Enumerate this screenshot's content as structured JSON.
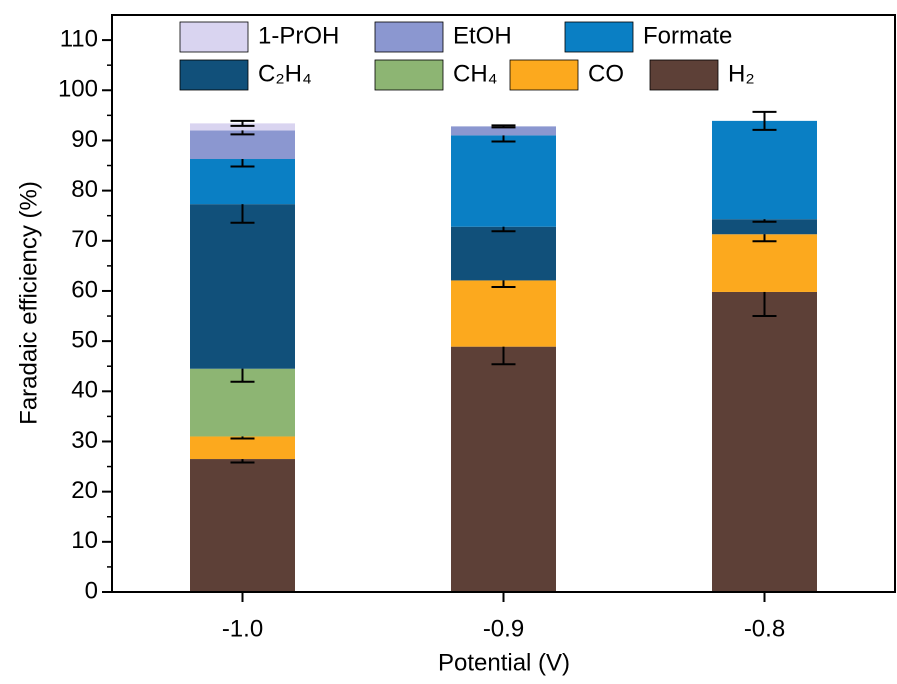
{
  "chart_data": {
    "type": "stacked-bar",
    "x_label": "Potential (V)",
    "y_label": "Faradaic efficiency (%)",
    "categories": [
      "-1.0",
      "-0.9",
      "-0.8"
    ],
    "ylim": [
      0,
      115
    ],
    "yticks": [
      0,
      10,
      20,
      30,
      40,
      50,
      60,
      70,
      80,
      90,
      100,
      110
    ],
    "series": [
      {
        "name": "H₂",
        "color": "#5d4037",
        "values": [
          26.5,
          48.9,
          59.8
        ],
        "errors": [
          0.7,
          3.5,
          4.8
        ]
      },
      {
        "name": "CO",
        "color": "#fca91e",
        "values": [
          4.5,
          13.2,
          11.5
        ],
        "errors": [
          0.4,
          1.3,
          1.4
        ]
      },
      {
        "name": "CH₄",
        "color": "#8db573",
        "values": [
          13.5,
          0,
          0
        ],
        "errors": [
          2.6,
          null,
          null
        ]
      },
      {
        "name": "C₂H₄",
        "color": "#11507a",
        "values": [
          32.8,
          10.7,
          3.0
        ],
        "errors": [
          3.7,
          0.9,
          0.5
        ]
      },
      {
        "name": "Formate",
        "color": "#0a7fc4",
        "values": [
          9.0,
          18.2,
          19.6
        ],
        "errors": [
          1.5,
          1.2,
          1.8
        ]
      },
      {
        "name": "EtOH",
        "color": "#8b97d0",
        "values": [
          5.7,
          1.8,
          0
        ],
        "errors": [
          0.8,
          0.2,
          null
        ]
      },
      {
        "name": "1-PrOH",
        "color": "#d9d4f0",
        "values": [
          1.4,
          0,
          0
        ],
        "errors": [
          0.5,
          null,
          null
        ]
      }
    ]
  }
}
